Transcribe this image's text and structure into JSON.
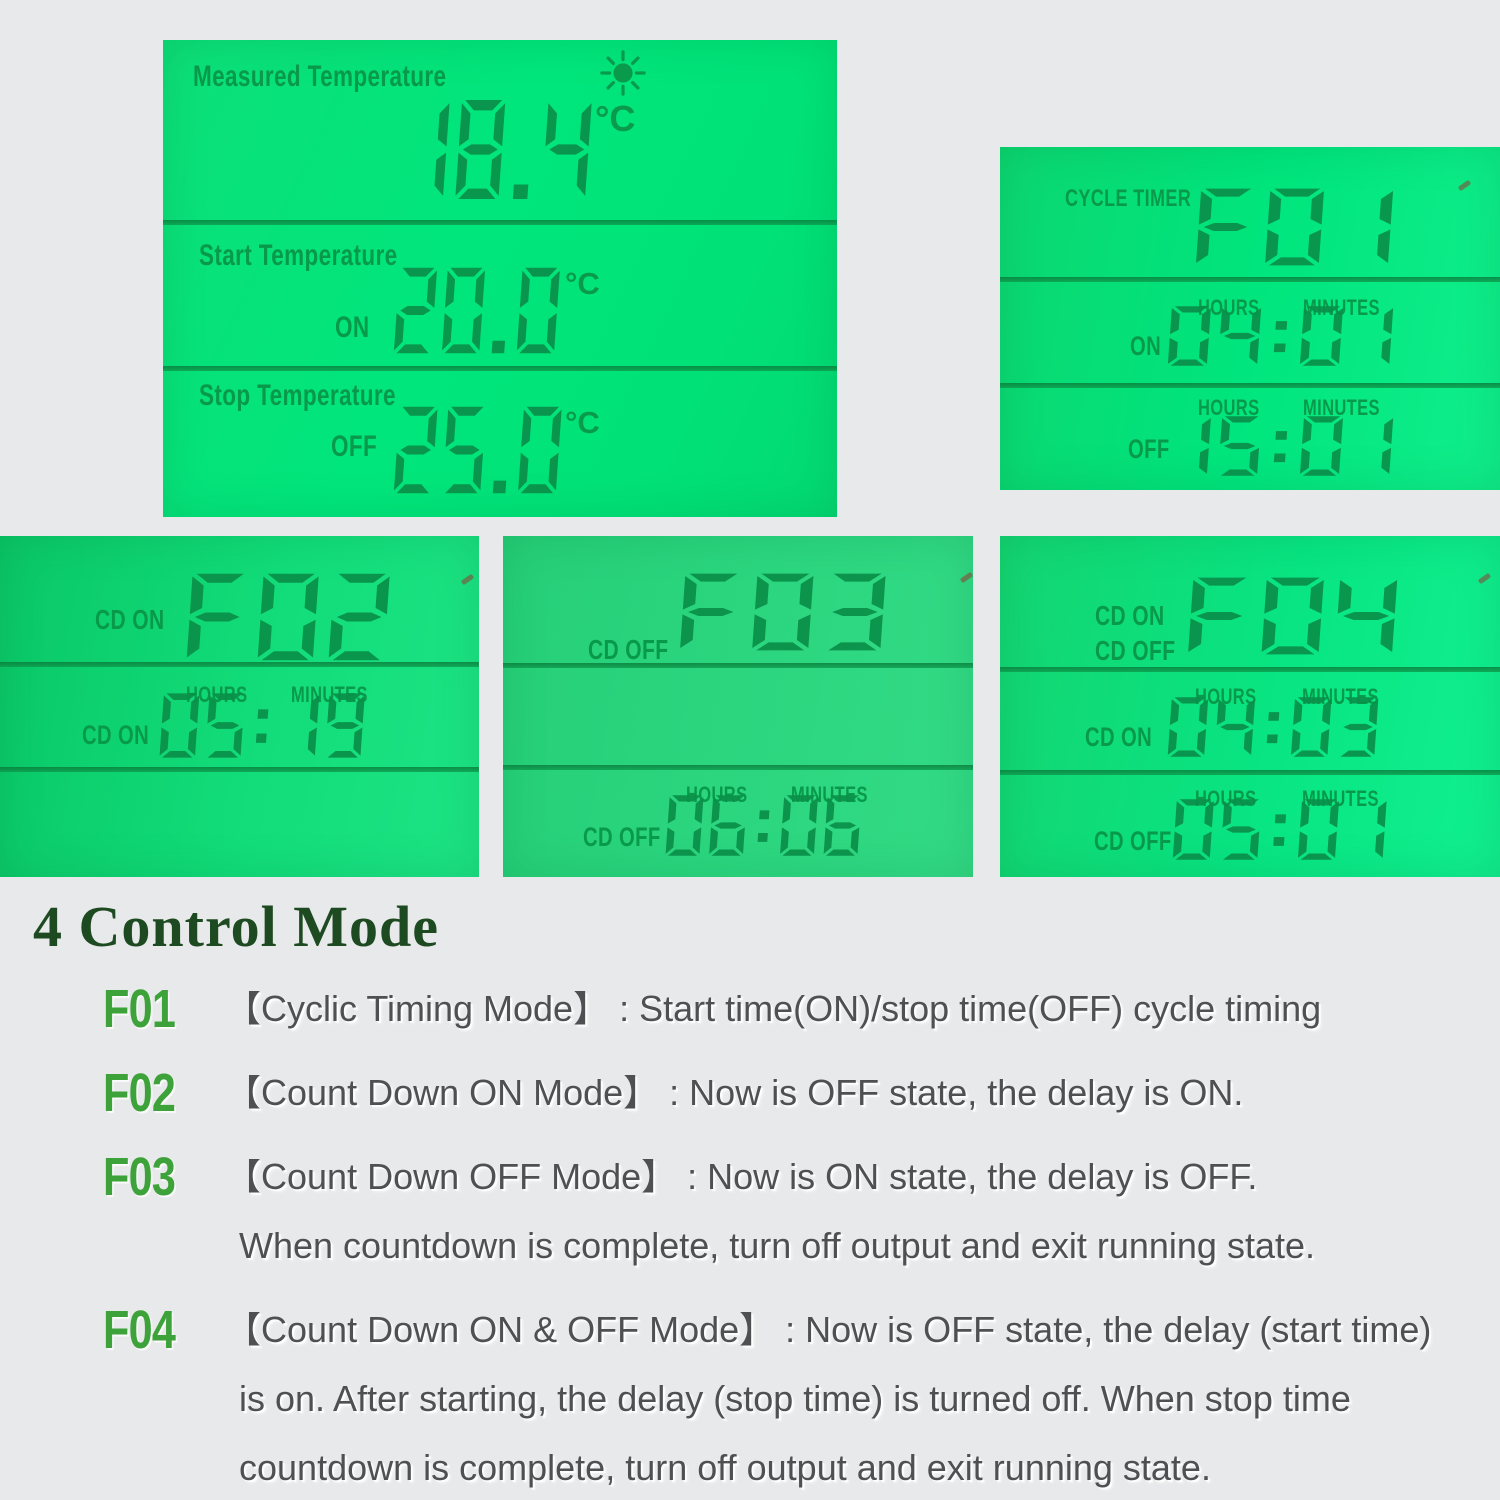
{
  "screens": {
    "temp": {
      "rows": [
        {
          "label": "Measured Temperature",
          "value": "18.4",
          "unit": "°C"
        },
        {
          "label": "Start Temperature",
          "state": "ON",
          "value": "20.0",
          "unit": "°C"
        },
        {
          "label": "Stop Temperature",
          "state": "OFF",
          "value": "25.0",
          "unit": "°C"
        }
      ]
    },
    "cycle": {
      "title": "CYCLE TIMER",
      "code": "F01",
      "rows": [
        {
          "hours": "HOURS",
          "minutes": "MINUTES",
          "state": "ON",
          "value": "04:01"
        },
        {
          "hours": "HOURS",
          "minutes": "MINUTES",
          "state": "OFF",
          "value": "15:01"
        }
      ]
    },
    "cdon": {
      "title": "CD ON",
      "code": "F02",
      "rows": [
        {
          "hours": "HOURS",
          "minutes": "MINUTES",
          "state": "CD ON",
          "value": "05:19"
        }
      ]
    },
    "cdoff": {
      "title": "CD OFF",
      "code": "F03",
      "rows": [
        {
          "hours": "HOURS",
          "minutes": "MINUTES",
          "state": "CD OFF",
          "value": "06:06"
        }
      ]
    },
    "cdonoff": {
      "title1": "CD ON",
      "title2": "CD OFF",
      "code": "F04",
      "rows": [
        {
          "hours": "HOURS",
          "minutes": "MINUTES",
          "state": "CD ON",
          "value": "04:03"
        },
        {
          "hours": "HOURS",
          "minutes": "MINUTES",
          "state": "CD OFF",
          "value": "05:01"
        }
      ]
    }
  },
  "modes": {
    "title": "4 Control Mode",
    "items": [
      {
        "code": "F01",
        "lines": [
          "【Cyclic Timing Mode】 : Start time(ON)/stop time(OFF) cycle timing"
        ]
      },
      {
        "code": "F02",
        "lines": [
          "【Count Down ON Mode】 : Now is OFF state, the delay is ON."
        ]
      },
      {
        "code": "F03",
        "lines": [
          "【Count Down OFF Mode】 : Now is ON state, the delay is OFF.",
          "When countdown is complete, turn off output and exit running state."
        ]
      },
      {
        "code": "F04",
        "lines": [
          "【Count Down ON & OFF Mode】 : Now is OFF state, the delay (start time)",
          "is on. After starting, the delay (stop time) is turned off. When stop time",
          "countdown is complete, turn off output and exit running state."
        ]
      }
    ]
  },
  "colors": {
    "lcd_green": "#00e57d",
    "lcd_segment": "#0a8f49",
    "lcd_label": "#089a4a",
    "accent_green": "#3da23a",
    "title_green": "#1d4a20",
    "body_text": "#4f5052",
    "background": "#e8e9ea"
  }
}
